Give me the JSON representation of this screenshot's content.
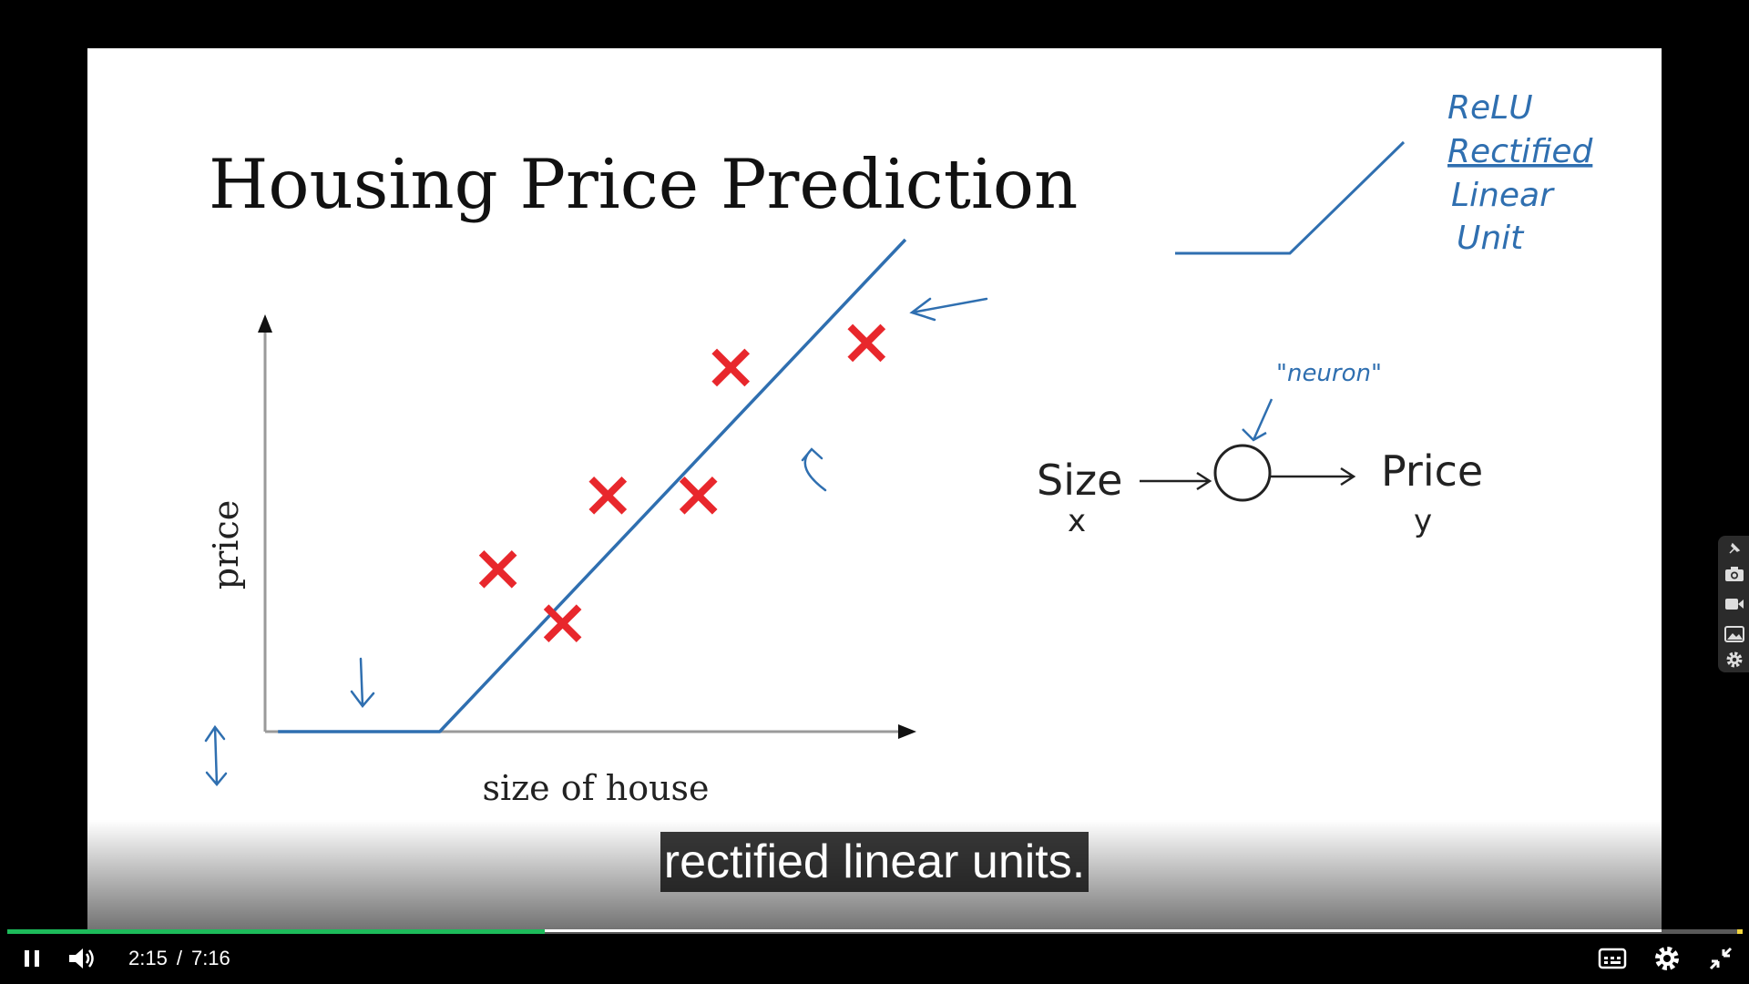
{
  "slide": {
    "title": "Housing Price Prediction",
    "y_axis_label": "price",
    "x_axis_label": "size of house",
    "relu_labels": [
      "ReLU",
      "Rectified",
      "Linear",
      "Unit"
    ],
    "neuron_label": "\"neuron\"",
    "input_label": "Size",
    "input_var": "x",
    "output_label": "Price",
    "output_var": "y"
  },
  "chart_data": {
    "type": "scatter",
    "title": "Housing Price Prediction",
    "xlabel": "size of house",
    "ylabel": "price",
    "points": [
      {
        "x": 3.6,
        "y": 3.3
      },
      {
        "x": 4.6,
        "y": 2.2
      },
      {
        "x": 5.3,
        "y": 4.8
      },
      {
        "x": 6.7,
        "y": 4.8
      },
      {
        "x": 7.2,
        "y": 7.4
      },
      {
        "x": 9.3,
        "y": 7.9
      }
    ],
    "fit_line": [
      {
        "x": 0.2,
        "y": 0.0
      },
      {
        "x": 2.7,
        "y": 0.0
      },
      {
        "x": 9.9,
        "y": 10.0
      }
    ],
    "xlim": [
      0,
      10
    ],
    "ylim": [
      0,
      10
    ],
    "grid": false
  },
  "caption": "rectified linear units.",
  "player": {
    "progress_fraction": 0.31,
    "current_time": "2:15",
    "separator": "/",
    "duration": "7:16"
  },
  "colors": {
    "marker": "#e8272c",
    "ink": "#2f6fb0",
    "progress": "#1dba5a"
  },
  "icons": {
    "pause": "pause-icon",
    "volume": "volume-icon",
    "captions": "captions-icon",
    "settings": "gear-icon",
    "fullscreen_exit": "exit-fullscreen-icon",
    "side_tools": [
      "pin-icon",
      "camera-icon",
      "video-camera-icon",
      "gallery-icon",
      "gear-icon"
    ]
  }
}
